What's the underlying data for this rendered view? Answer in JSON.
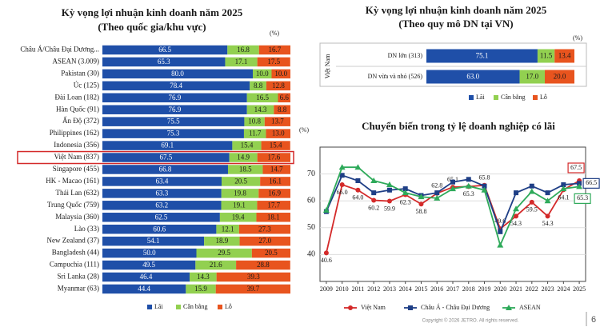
{
  "chart_data": [
    {
      "type": "bar",
      "orientation": "horizontal",
      "stacked": true,
      "title": "Kỳ vọng lợi nhuận kinh doanh năm 2025",
      "subtitle": "(Theo quốc gia/khu vực)",
      "unit": "(%)",
      "xlim": [
        0,
        100
      ],
      "highlight": 9,
      "categories": [
        "Châu Á/Châu Đại Dương...",
        "ASEAN (3.009)",
        "Pakistan (30)",
        "Úc (125)",
        "Đài Loan (182)",
        "Hàn Quốc (91)",
        "Ấn Độ (372)",
        "Philippines (162)",
        "Indonesia (356)",
        "Việt Nam (837)",
        "Singapore (455)",
        "HK - Macao (161)",
        "Thái Lan (632)",
        "Trung Quốc (759)",
        "Malaysia (360)",
        "Lào (33)",
        "New Zealand (37)",
        "Bangladesh (44)",
        "Campuchia (111)",
        "Sri Lanka (28)",
        "Myanmar (63)"
      ],
      "series": [
        {
          "name": "Lãi",
          "color": "#1f4fa8",
          "text_color": "#ffffff",
          "values": [
            66.5,
            65.3,
            80.0,
            78.4,
            76.9,
            76.9,
            75.5,
            75.3,
            69.1,
            67.5,
            66.8,
            63.4,
            63.3,
            63.2,
            62.5,
            60.6,
            54.1,
            50.0,
            49.5,
            46.4,
            44.4
          ],
          "value_labels": [
            "66.5",
            "65.3",
            "80.0",
            "78.4",
            "76.9",
            "76.9",
            "75.5",
            "75.3",
            "69.1",
            "67.5",
            "66.8",
            "63.4",
            "63.3",
            "63.2",
            "62.5",
            "60.6",
            "54.1",
            "50.0",
            "49.5",
            "46.4",
            "44.4"
          ]
        },
        {
          "name": "Cân bằng",
          "color": "#92d050",
          "text_color": "#1a1a1a",
          "values": [
            16.8,
            17.1,
            10.0,
            8.8,
            16.5,
            14.3,
            10.8,
            11.7,
            15.4,
            14.9,
            18.5,
            20.5,
            19.8,
            19.1,
            19.4,
            12.1,
            18.9,
            29.5,
            21.6,
            14.3,
            15.9
          ],
          "value_labels": [
            "16.8",
            "17.1",
            "10.0",
            "8.8",
            "16.5",
            "14.3",
            "10.8",
            "11.7",
            "15.4",
            "14.9",
            "18.5",
            "20.5",
            "19.8",
            "19.1",
            "19.4",
            "12.1",
            "18.9",
            "29.5",
            "21.6",
            "14.3",
            "15.9"
          ]
        },
        {
          "name": "Lỗ",
          "color": "#e8541e",
          "text_color": "#1a1a1a",
          "values": [
            16.7,
            17.5,
            10.0,
            12.8,
            6.6,
            8.8,
            13.7,
            13.0,
            15.4,
            17.6,
            14.7,
            16.1,
            16.9,
            17.7,
            18.1,
            27.3,
            27.0,
            20.5,
            28.8,
            39.3,
            39.7
          ],
          "value_labels": [
            "16.7",
            "17.5",
            "10.0",
            "12.8",
            "6.6",
            "8.8",
            "13.7",
            "13.0",
            "15.4",
            "17.6",
            "14.7",
            "16.1",
            "16.9",
            "17.7",
            "18.1",
            "27.3",
            "27.0",
            "20.5",
            "28.8",
            "39.3",
            "39.7"
          ]
        }
      ]
    },
    {
      "type": "bar",
      "orientation": "horizontal",
      "stacked": true,
      "title": "Kỳ vọng lợi nhuận kinh doanh năm 2025",
      "subtitle": "(Theo quy mô DN tại VN)",
      "unit": "(%)",
      "group_label": "Việt Nam",
      "xlim": [
        0,
        100
      ],
      "categories": [
        "DN lớn (313)",
        "DN vừa và nhỏ (526)"
      ],
      "series": [
        {
          "name": "Lãi",
          "color": "#1f4fa8",
          "text_color": "#ffffff",
          "values": [
            75.1,
            63.0
          ],
          "value_labels": [
            "75.1",
            "63.0"
          ]
        },
        {
          "name": "Cân bằng",
          "color": "#92d050",
          "text_color": "#1a1a1a",
          "values": [
            11.5,
            17.0
          ],
          "value_labels": [
            "11.5",
            "17.0"
          ]
        },
        {
          "name": "Lỗ",
          "color": "#e8541e",
          "text_color": "#1a1a1a",
          "values": [
            13.4,
            20.0
          ],
          "value_labels": [
            "13.4",
            "20.0"
          ]
        }
      ]
    },
    {
      "type": "line",
      "title": "Chuyển biến trong tỷ lệ doanh nghiệp có lãi",
      "unit": "(%)",
      "x": [
        2009,
        2010,
        2011,
        2012,
        2013,
        2014,
        2015,
        2016,
        2017,
        2018,
        2019,
        2020,
        2021,
        2022,
        2023,
        2024,
        2025
      ],
      "xticks": [
        2009,
        2010,
        2011,
        2012,
        2013,
        2014,
        2015,
        2016,
        2017,
        2018,
        2019,
        2020,
        2021,
        2022,
        2023,
        2024,
        2025
      ],
      "xlim": [
        2008.6,
        2025.4
      ],
      "ylim": [
        30,
        80
      ],
      "yticks": [
        40,
        50,
        60,
        70
      ],
      "grid": true,
      "series": [
        {
          "name": "Việt Nam",
          "color": "#d42a2a",
          "marker": "circle",
          "values": [
            40.6,
            66.0,
            64.0,
            60.2,
            59.9,
            62.3,
            58.8,
            62.8,
            65.1,
            65.3,
            65.8,
            49.6,
            54.3,
            59.5,
            54.3,
            64.1,
            67.5
          ],
          "value_labels": [
            "40.6",
            "66.0",
            "64.0",
            "60.2",
            "59.9",
            "62.3",
            "58.8",
            "62.8",
            "65.1",
            "65.3",
            "65.8",
            "49.6",
            "54.3",
            "59.5",
            "54.3",
            "64.1",
            "67.5"
          ]
        },
        {
          "name": "Châu Á - Châu Đại Dương",
          "color": "#1f3f86",
          "marker": "square",
          "values": [
            56,
            69.5,
            67.5,
            63,
            64,
            64.5,
            62,
            63,
            67,
            68,
            65.5,
            48.5,
            63,
            65.5,
            63,
            66,
            66.5
          ],
          "value_labels": [
            null,
            null,
            null,
            null,
            null,
            null,
            null,
            null,
            null,
            null,
            null,
            null,
            null,
            null,
            null,
            null,
            "66.5"
          ]
        },
        {
          "name": "ASEAN",
          "color": "#2eaa5a",
          "marker": "triangle",
          "values": [
            56.5,
            72.5,
            72.5,
            67.5,
            66,
            63,
            61.5,
            61,
            64.5,
            65.5,
            64,
            43.5,
            57,
            63.5,
            60,
            64.5,
            65.3
          ],
          "value_labels": [
            null,
            null,
            null,
            null,
            null,
            null,
            null,
            null,
            null,
            null,
            null,
            null,
            null,
            null,
            null,
            null,
            "65.3"
          ]
        }
      ]
    }
  ],
  "footer": {
    "copyright": "Copyright © 2026 JETRO. All rights reserved.",
    "page": "6"
  }
}
